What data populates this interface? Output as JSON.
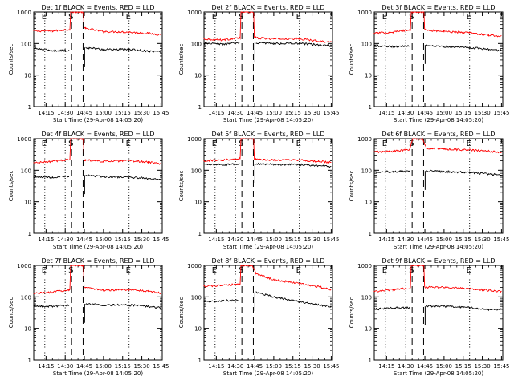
{
  "figure": {
    "ylabel": "Counts/sec",
    "xlabel": "Start Time (29-Apr-08 14:05:20)",
    "x_tick_labels": [
      "14:15",
      "14:30",
      "14:45",
      "15:00",
      "15:15",
      "15:30",
      "15:45"
    ],
    "y_tick_labels": [
      "1",
      "10",
      "100",
      "1000"
    ],
    "marker_labels": [
      "E",
      "S",
      "E"
    ]
  },
  "chart_data": [
    {
      "type": "line",
      "title": "Det 1f BLACK = Events, RED = LLD",
      "detector": "1f",
      "ylim": [
        1,
        1000
      ],
      "yscale": "log",
      "markers": {
        "dotted": [
          "14:14",
          "14:30",
          "15:20"
        ],
        "dashed": [
          "14:35",
          "14:44"
        ],
        "labels": [
          "E",
          "S",
          "E"
        ]
      },
      "series": [
        {
          "name": "LLD",
          "color": "#ff0000",
          "x": [
            "14:05",
            "14:20",
            "14:33",
            "14:35:30",
            "14:43",
            "14:46",
            "15:00",
            "15:20",
            "15:35",
            "15:45"
          ],
          "values": [
            250,
            250,
            280,
            1000,
            1000,
            300,
            240,
            230,
            210,
            190
          ]
        },
        {
          "name": "Events",
          "color": "#000000",
          "x": [
            "14:05",
            "14:20",
            "14:33",
            "14:35:30",
            "14:43",
            "14:46",
            "15:00",
            "15:20",
            "15:35",
            "15:45"
          ],
          "values": [
            70,
            60,
            60,
            null,
            null,
            75,
            65,
            65,
            58,
            55
          ]
        }
      ]
    },
    {
      "type": "line",
      "title": "Det 2f BLACK = Events, RED = LLD",
      "detector": "2f",
      "ylim": [
        1,
        1000
      ],
      "yscale": "log",
      "markers": {
        "dotted": [
          "14:14",
          "14:30",
          "15:20"
        ],
        "dashed": [
          "14:35",
          "14:44"
        ],
        "labels": [
          "E",
          "S",
          "E"
        ]
      },
      "series": [
        {
          "name": "LLD",
          "color": "#ff0000",
          "x": [
            "14:05",
            "14:20",
            "14:33",
            "14:35:30",
            "14:43",
            "14:46",
            "15:00",
            "15:20",
            "15:35",
            "15:45"
          ],
          "values": [
            140,
            130,
            150,
            1000,
            1000,
            150,
            140,
            140,
            120,
            110
          ]
        },
        {
          "name": "Events",
          "color": "#000000",
          "x": [
            "14:05",
            "14:20",
            "14:33",
            "14:35:30",
            "14:43",
            "14:46",
            "15:00",
            "15:20",
            "15:35",
            "15:45"
          ],
          "values": [
            100,
            95,
            105,
            null,
            null,
            105,
            100,
            100,
            90,
            85
          ]
        }
      ]
    },
    {
      "type": "line",
      "title": "Det 3f BLACK = Events, RED = LLD",
      "detector": "3f",
      "ylim": [
        1,
        1000
      ],
      "yscale": "log",
      "markers": {
        "dotted": [
          "14:14",
          "14:30",
          "15:20"
        ],
        "dashed": [
          "14:35",
          "14:44"
        ],
        "labels": [
          "E",
          "S",
          "E"
        ]
      },
      "series": [
        {
          "name": "LLD",
          "color": "#ff0000",
          "x": [
            "14:05",
            "14:20",
            "14:33",
            "14:35:30",
            "14:43",
            "14:46",
            "15:00",
            "15:20",
            "15:35",
            "15:45"
          ],
          "values": [
            210,
            230,
            270,
            1000,
            1000,
            270,
            240,
            220,
            185,
            170
          ]
        },
        {
          "name": "Events",
          "color": "#000000",
          "x": [
            "14:05",
            "14:20",
            "14:33",
            "14:35:30",
            "14:43",
            "14:46",
            "15:00",
            "15:20",
            "15:35",
            "15:45"
          ],
          "values": [
            85,
            80,
            85,
            null,
            null,
            90,
            80,
            75,
            65,
            60
          ]
        }
      ]
    },
    {
      "type": "line",
      "title": "Det 4f BLACK = Events, RED = LLD",
      "detector": "4f",
      "ylim": [
        1,
        1000
      ],
      "yscale": "log",
      "markers": {
        "dotted": [
          "14:14",
          "14:30",
          "15:20"
        ],
        "dashed": [
          "14:35",
          "14:44"
        ],
        "labels": [
          "E",
          "S",
          "E"
        ]
      },
      "series": [
        {
          "name": "LLD",
          "color": "#ff0000",
          "x": [
            "14:05",
            "14:20",
            "14:33",
            "14:35:30",
            "14:43",
            "14:46",
            "15:00",
            "15:20",
            "15:35",
            "15:45"
          ],
          "values": [
            170,
            190,
            220,
            1000,
            1000,
            210,
            190,
            200,
            180,
            160
          ]
        },
        {
          "name": "Events",
          "color": "#000000",
          "x": [
            "14:05",
            "14:20",
            "14:33",
            "14:35:30",
            "14:43",
            "14:46",
            "15:00",
            "15:20",
            "15:35",
            "15:45"
          ],
          "values": [
            60,
            60,
            65,
            null,
            null,
            70,
            62,
            60,
            55,
            50
          ]
        }
      ]
    },
    {
      "type": "line",
      "title": "Det 5f BLACK = Events, RED = LLD",
      "detector": "5f",
      "ylim": [
        1,
        1000
      ],
      "yscale": "log",
      "markers": {
        "dotted": [
          "14:14",
          "14:30",
          "15:20"
        ],
        "dashed": [
          "14:35",
          "14:44"
        ],
        "labels": [
          "E",
          "S",
          "E"
        ]
      },
      "series": [
        {
          "name": "LLD",
          "color": "#ff0000",
          "x": [
            "14:05",
            "14:20",
            "14:33",
            "14:35:30",
            "14:43",
            "14:46",
            "15:00",
            "15:20",
            "15:35",
            "15:45"
          ],
          "values": [
            200,
            210,
            240,
            1000,
            1000,
            220,
            210,
            210,
            190,
            180
          ]
        },
        {
          "name": "Events",
          "color": "#000000",
          "x": [
            "14:05",
            "14:20",
            "14:33",
            "14:35:30",
            "14:43",
            "14:46",
            "15:00",
            "15:20",
            "15:35",
            "15:45"
          ],
          "values": [
            150,
            150,
            160,
            null,
            null,
            160,
            155,
            150,
            140,
            130
          ]
        }
      ]
    },
    {
      "type": "line",
      "title": "Det 6f BLACK = Events, RED = LLD",
      "detector": "6f",
      "ylim": [
        1,
        1000
      ],
      "yscale": "log",
      "markers": {
        "dotted": [
          "14:14",
          "14:30",
          "15:20"
        ],
        "dashed": [
          "14:35",
          "14:44"
        ],
        "labels": [
          "E",
          "S",
          "E"
        ]
      },
      "series": [
        {
          "name": "LLD",
          "color": "#ff0000",
          "x": [
            "14:05",
            "14:20",
            "14:33",
            "14:35:30",
            "14:43",
            "14:46",
            "15:00",
            "15:20",
            "15:35",
            "15:45"
          ],
          "values": [
            380,
            400,
            450,
            1000,
            1000,
            500,
            470,
            440,
            400,
            370
          ]
        },
        {
          "name": "Events",
          "color": "#000000",
          "x": [
            "14:05",
            "14:20",
            "14:33",
            "14:35:30",
            "14:43",
            "14:46",
            "15:00",
            "15:20",
            "15:35",
            "15:45"
          ],
          "values": [
            90,
            90,
            95,
            null,
            null,
            95,
            90,
            85,
            75,
            70
          ]
        }
      ]
    },
    {
      "type": "line",
      "title": "Det 7f BLACK = Events, RED = LLD",
      "detector": "7f",
      "ylim": [
        1,
        1000
      ],
      "yscale": "log",
      "markers": {
        "dotted": [
          "14:14",
          "14:30",
          "15:20"
        ],
        "dashed": [
          "14:35",
          "14:44"
        ],
        "labels": [
          "E",
          "S",
          "E"
        ]
      },
      "series": [
        {
          "name": "LLD",
          "color": "#ff0000",
          "x": [
            "14:05",
            "14:20",
            "14:33",
            "14:35:30",
            "14:43",
            "14:46",
            "15:00",
            "15:20",
            "15:35",
            "15:45"
          ],
          "values": [
            130,
            140,
            170,
            1000,
            1000,
            200,
            160,
            170,
            150,
            130
          ]
        },
        {
          "name": "Events",
          "color": "#000000",
          "x": [
            "14:05",
            "14:20",
            "14:33",
            "14:35:30",
            "14:43",
            "14:46",
            "15:00",
            "15:20",
            "15:35",
            "15:45"
          ],
          "values": [
            50,
            50,
            55,
            null,
            null,
            60,
            55,
            55,
            50,
            45
          ]
        }
      ]
    },
    {
      "type": "line",
      "title": "Det 8f BLACK = Events, RED = LLD",
      "detector": "8f",
      "ylim": [
        1,
        1000
      ],
      "yscale": "log",
      "markers": {
        "dotted": [
          "14:14",
          "14:30",
          "15:20"
        ],
        "dashed": [
          "14:35",
          "14:44"
        ],
        "labels": [
          "E",
          "S",
          "E"
        ]
      },
      "series": [
        {
          "name": "LLD",
          "color": "#ff0000",
          "x": [
            "14:05",
            "14:20",
            "14:33",
            "14:35:30",
            "14:43",
            "14:46",
            "15:00",
            "15:20",
            "15:35",
            "15:45"
          ],
          "values": [
            220,
            230,
            250,
            1000,
            1000,
            550,
            350,
            270,
            210,
            170
          ]
        },
        {
          "name": "Events",
          "color": "#000000",
          "x": [
            "14:05",
            "14:20",
            "14:33",
            "14:35:30",
            "14:43",
            "14:46",
            "15:00",
            "15:20",
            "15:35",
            "15:45"
          ],
          "values": [
            70,
            75,
            80,
            null,
            null,
            140,
            100,
            70,
            55,
            50
          ]
        }
      ]
    },
    {
      "type": "line",
      "title": "Det 9f BLACK = Events, RED = LLD",
      "detector": "9f",
      "ylim": [
        1,
        1000
      ],
      "yscale": "log",
      "markers": {
        "dotted": [
          "14:14",
          "14:30",
          "15:20"
        ],
        "dashed": [
          "14:35",
          "14:44"
        ],
        "labels": [
          "E",
          "S",
          "E"
        ]
      },
      "series": [
        {
          "name": "LLD",
          "color": "#ff0000",
          "x": [
            "14:05",
            "14:20",
            "14:33",
            "14:35:30",
            "14:43",
            "14:46",
            "15:00",
            "15:20",
            "15:35",
            "15:45"
          ],
          "values": [
            150,
            170,
            190,
            1000,
            1000,
            200,
            200,
            180,
            160,
            150
          ]
        },
        {
          "name": "Events",
          "color": "#000000",
          "x": [
            "14:05",
            "14:20",
            "14:33",
            "14:35:30",
            "14:43",
            "14:46",
            "15:00",
            "15:20",
            "15:35",
            "15:45"
          ],
          "values": [
            40,
            45,
            45,
            null,
            null,
            50,
            50,
            45,
            40,
            40
          ]
        }
      ]
    }
  ]
}
